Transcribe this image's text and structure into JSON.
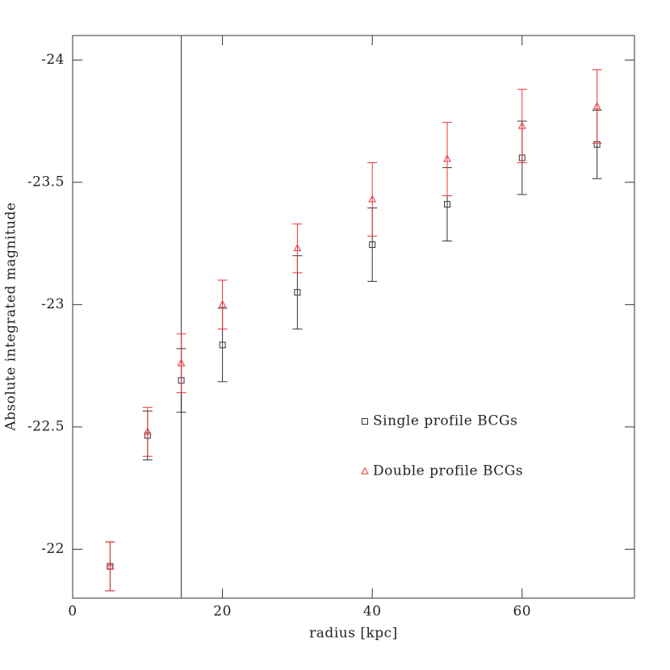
{
  "chart_data": {
    "type": "scatter",
    "x_label": "radius [kpc]",
    "y_label": "Absolute integrated magnitude",
    "xlim": [
      0,
      75
    ],
    "xticks": [
      0,
      20,
      40,
      60
    ],
    "ylim": [
      -21.8,
      -24.1
    ],
    "yticks": [
      -22,
      -22.5,
      -23,
      -23.5,
      -24
    ],
    "vline": 14.5,
    "series": [
      {
        "name": "Single profile BCGs",
        "color": "#333333",
        "marker": "square",
        "x": [
          5,
          10,
          14.5,
          20,
          30,
          40,
          50,
          60,
          70
        ],
        "values": [
          -21.93,
          -22.465,
          -22.69,
          -22.835,
          -23.05,
          -23.245,
          -23.41,
          -23.6,
          -23.655
        ],
        "errors": [
          0.1,
          0.1,
          0.13,
          0.15,
          0.15,
          0.15,
          0.15,
          0.15,
          0.14
        ]
      },
      {
        "name": "Double profile BCGs",
        "color": "#e8343a",
        "marker": "triangle",
        "x": [
          5,
          10,
          14.5,
          20,
          30,
          40,
          50,
          60,
          70
        ],
        "values": [
          -21.93,
          -22.48,
          -22.76,
          -23.0,
          -23.23,
          -23.43,
          -23.595,
          -23.73,
          -23.81
        ],
        "errors": [
          0.1,
          0.1,
          0.12,
          0.1,
          0.1,
          0.15,
          0.15,
          0.15,
          0.15
        ]
      }
    ]
  }
}
